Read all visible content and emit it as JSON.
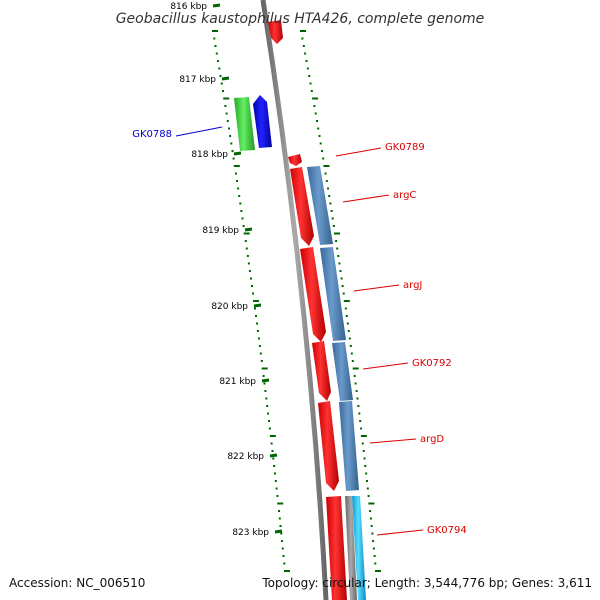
{
  "title": "Geobacillus kaustophilus HTA426, complete genome",
  "footer": {
    "accession": "Accession: NC_006510",
    "summary": "Topology: circular; Length: 3,544,776 bp; Genes: 3,611"
  },
  "ticks": [
    {
      "label": "816 kbp"
    },
    {
      "label": "817 kbp"
    },
    {
      "label": "818 kbp"
    },
    {
      "label": "819 kbp"
    },
    {
      "label": "820 kbp"
    },
    {
      "label": "821 kbp"
    },
    {
      "label": "822 kbp"
    },
    {
      "label": "823 kbp"
    }
  ],
  "genes": [
    {
      "label": "GK0788",
      "strand": "minus",
      "color": "#0000cc"
    },
    {
      "label": "GK0789",
      "strand": "plus",
      "color": "#dd0000"
    },
    {
      "label": "argC",
      "strand": "plus",
      "color": "#dd0000"
    },
    {
      "label": "argJ",
      "strand": "plus",
      "color": "#dd0000"
    },
    {
      "label": "GK0792",
      "strand": "plus",
      "color": "#dd0000"
    },
    {
      "label": "argD",
      "strand": "plus",
      "color": "#dd0000"
    },
    {
      "label": "GK0794",
      "strand": "plus",
      "color": "#dd0000"
    }
  ],
  "colors": {
    "backbone": "#888888",
    "gc_skew": "#006600",
    "plus_gene": "#ee0000",
    "minus_gene": "#0000dd",
    "cog_green": "#33cc33",
    "cog_steelblue": "#4a7fb0",
    "cog_cyan": "#22bbee"
  }
}
